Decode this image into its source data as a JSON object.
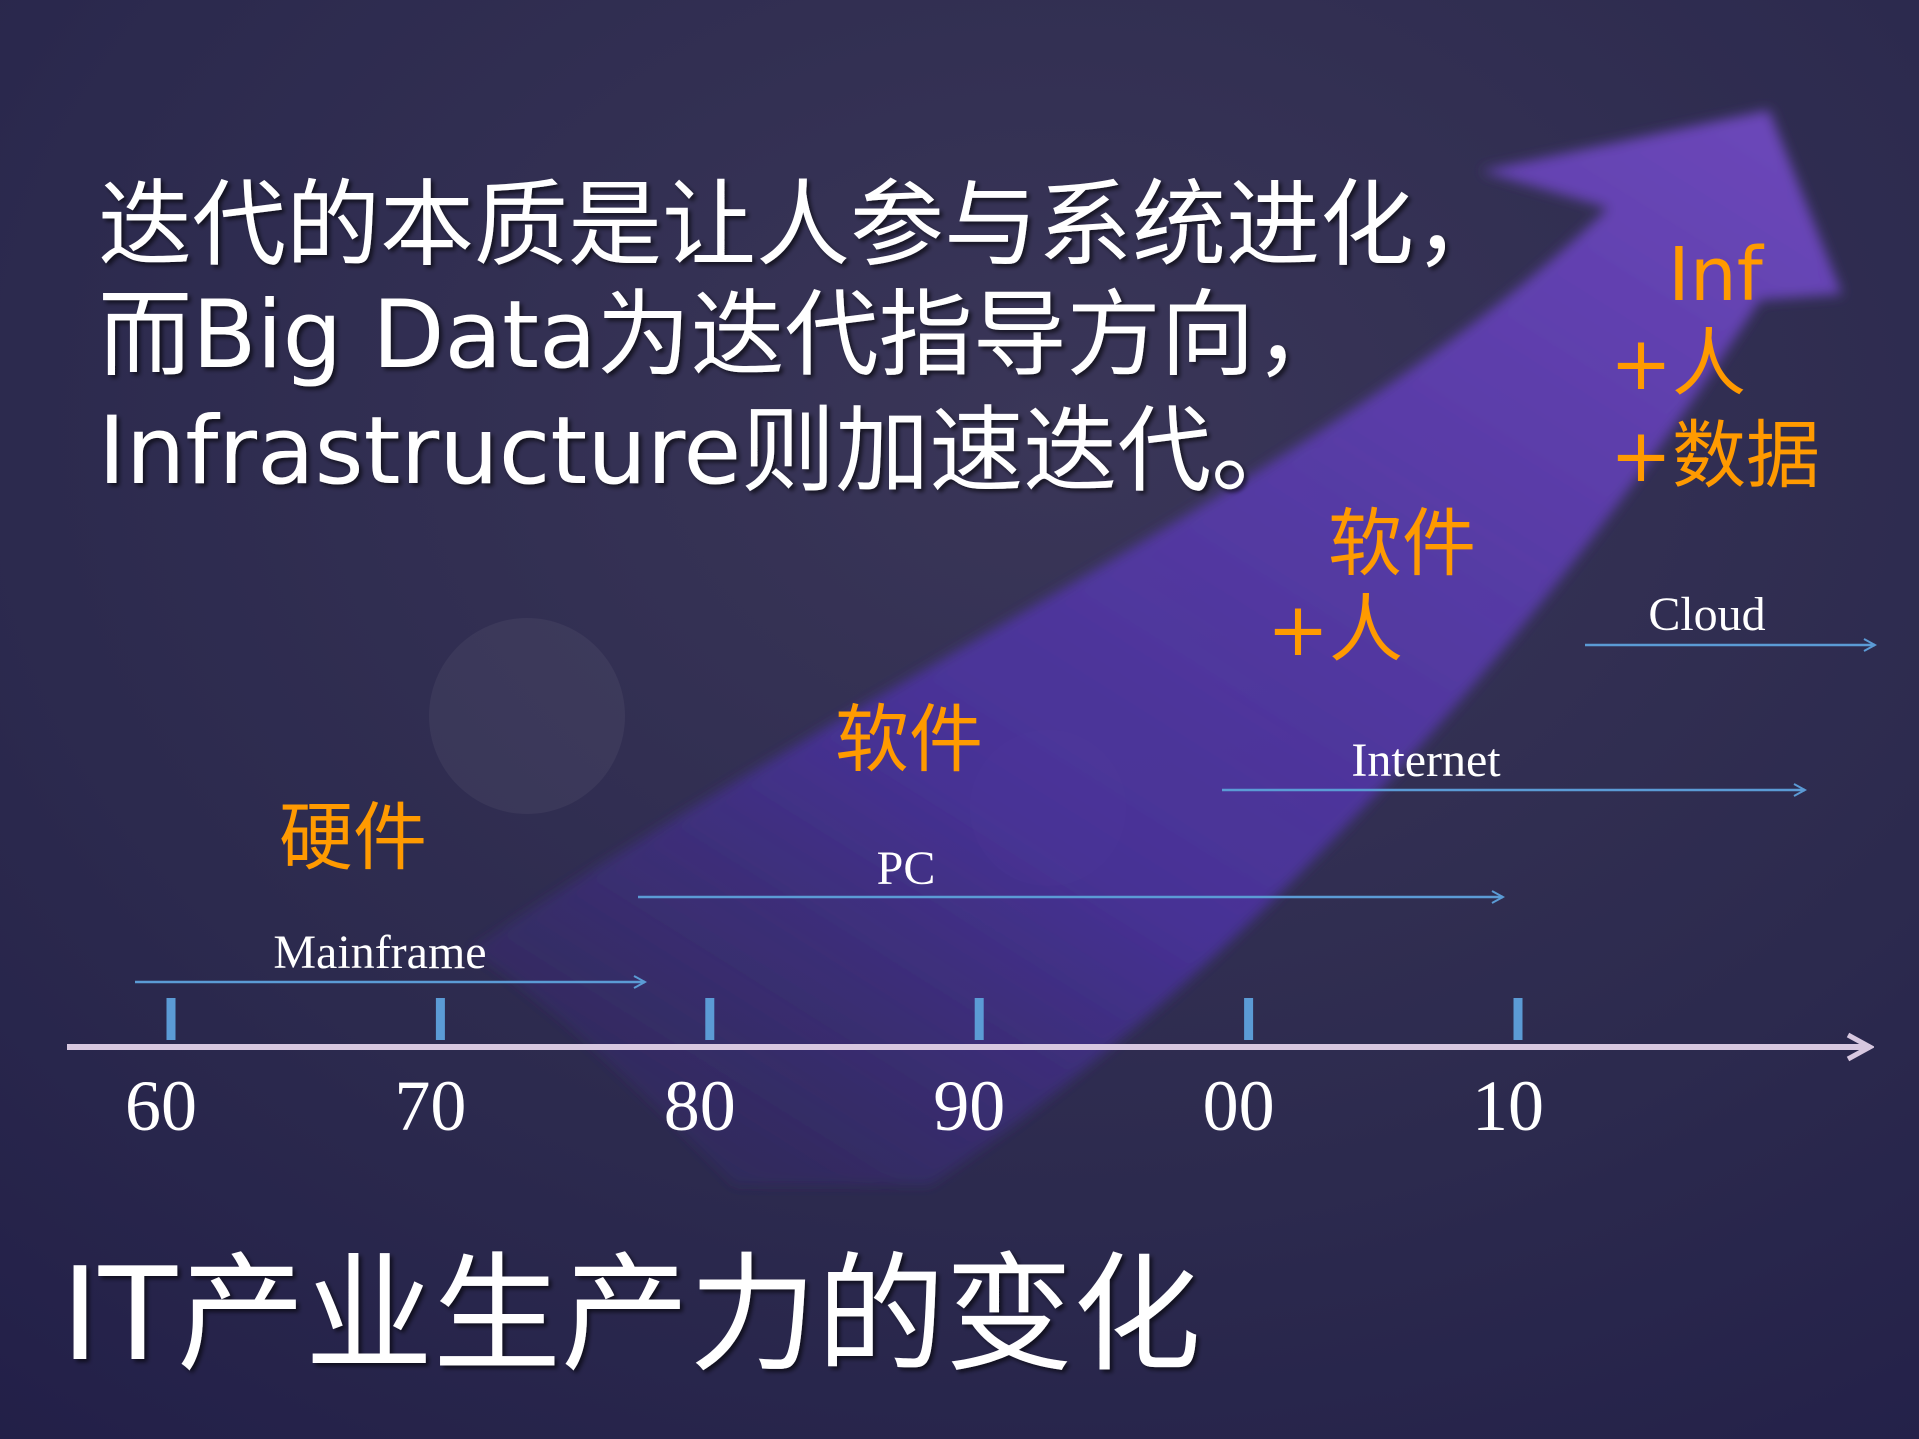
{
  "slide": {
    "headline_lines": [
      "迭代的本质是让人参与系统进化，",
      "而Big Data为迭代指导方向，",
      "Infrastructure则加速迭代。"
    ],
    "bottom_title": "IT产业生产力的变化"
  },
  "timeline": {
    "ticks": [
      "60",
      "70",
      "80",
      "90",
      "00",
      "10"
    ],
    "eras": [
      {
        "label": "Mainframe",
        "from": "60",
        "to": "80"
      },
      {
        "label": "PC",
        "from": "80",
        "to": "10"
      },
      {
        "label": "Internet",
        "from": "00",
        "to": "10+"
      },
      {
        "label": "Cloud",
        "from": "10+",
        "to": "10+"
      }
    ],
    "stages": [
      {
        "lines": [
          "硬件"
        ]
      },
      {
        "lines": [
          "软件"
        ]
      },
      {
        "lines": [
          "软件",
          "+人"
        ]
      },
      {
        "lines": [
          "Inf",
          "+人",
          "+数据"
        ]
      }
    ]
  },
  "colors": {
    "background": "#2a2850",
    "arrow": "#5a3fa8",
    "era_line": "#5b9bd5",
    "stage_text": "#ff9a00",
    "axis": "#d8c8e0"
  }
}
